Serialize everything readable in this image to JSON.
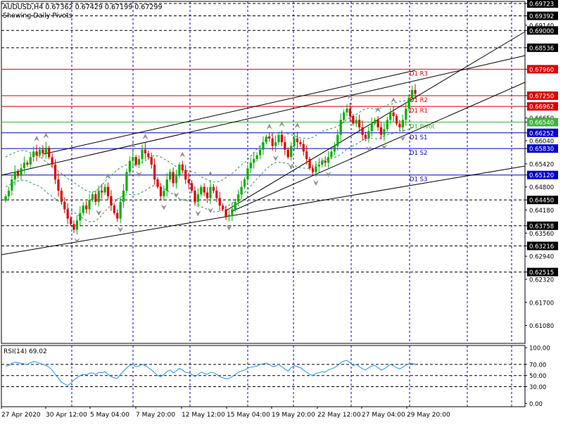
{
  "header": {
    "symbol_line": "AUDUSD,H4  0.67362 0.67429 0.67199 0.67299",
    "subtitle": "Showing Daily Pivots"
  },
  "chart_data": [
    {
      "type": "candlestick",
      "symbol": "AUDUSD",
      "timeframe": "H4",
      "ohlc_display": {
        "open": 0.67362,
        "high": 0.67429,
        "low": 0.67199,
        "close": 0.67299
      },
      "ylim": [
        0.606,
        0.6978
      ],
      "price_ticks": [
        "0.69723",
        "0.69392",
        "0.69140",
        "0.69000",
        "0.68536",
        "0.67960",
        "0.67250",
        "0.66962",
        "0.66650",
        "0.66540",
        "0.66252",
        "0.66040",
        "0.65830",
        "0.65420",
        "0.65120",
        "0.64800",
        "0.64450",
        "0.64180",
        "0.63758",
        "0.63560",
        "0.63216",
        "0.62940",
        "0.62515",
        "0.62320",
        "0.61700",
        "0.61080"
      ],
      "highlighted_ticks": [
        "0.69723",
        "0.69392",
        "0.69000",
        "0.68536",
        "0.67960",
        "0.67250",
        "0.66962",
        "0.66540",
        "0.66252",
        "0.65830",
        "0.65120",
        "0.64450",
        "0.63758",
        "0.63216",
        "0.62515"
      ],
      "x_labels": [
        "27 Apr 2020",
        "30 Apr 12:00",
        "5 May 04:00",
        "7 May 20:00",
        "12 May 12:00",
        "15 May 04:00",
        "19 May 20:00",
        "22 May 12:00",
        "27 May 04:00",
        "29 May 20:00"
      ],
      "pivots": [
        {
          "label": "D1 R3",
          "value": 0.6796,
          "color": "#dd0000"
        },
        {
          "label": "D1 R2",
          "value": 0.6725,
          "color": "#dd0000"
        },
        {
          "label": "D1 R1",
          "value": 0.66962,
          "color": "#dd0000"
        },
        {
          "label": "D1 Pivot",
          "value": 0.6654,
          "color": "#3cb43c"
        },
        {
          "label": "D1 S1",
          "value": 0.66252,
          "color": "#0000cc"
        },
        {
          "label": "D1 S2",
          "value": 0.6583,
          "color": "#0000cc"
        },
        {
          "label": "D1 S3",
          "value": 0.6512,
          "color": "#0000cc"
        }
      ],
      "horizontal_levels": [
        0.69723,
        0.69392,
        0.69,
        0.68536,
        0.6445,
        0.63758,
        0.63216,
        0.62515
      ],
      "bull_color": "#00b000",
      "bear_color": "#dd0000",
      "closes": [
        0.6455,
        0.647,
        0.65,
        0.652,
        0.651,
        0.653,
        0.6545,
        0.654,
        0.656,
        0.6575,
        0.6565,
        0.658,
        0.657,
        0.6585,
        0.656,
        0.654,
        0.65,
        0.647,
        0.644,
        0.642,
        0.6395,
        0.638,
        0.6365,
        0.639,
        0.641,
        0.643,
        0.642,
        0.6445,
        0.646,
        0.644,
        0.647,
        0.6465,
        0.648,
        0.6455,
        0.643,
        0.641,
        0.6395,
        0.644,
        0.647,
        0.652,
        0.655,
        0.656,
        0.654,
        0.6555,
        0.658,
        0.657,
        0.656,
        0.654,
        0.65,
        0.648,
        0.6455,
        0.647,
        0.65,
        0.652,
        0.649,
        0.651,
        0.654,
        0.6525,
        0.65,
        0.649,
        0.647,
        0.644,
        0.646,
        0.648,
        0.6465,
        0.645,
        0.648,
        0.647,
        0.645,
        0.643,
        0.642,
        0.64,
        0.6405,
        0.642,
        0.644,
        0.646,
        0.648,
        0.65,
        0.653,
        0.6545,
        0.6555,
        0.6565,
        0.658,
        0.66,
        0.6615,
        0.661,
        0.659,
        0.66,
        0.662,
        0.66,
        0.658,
        0.656,
        0.659,
        0.661,
        0.66,
        0.6595,
        0.6575,
        0.6555,
        0.653,
        0.652,
        0.6535,
        0.654,
        0.655,
        0.6545,
        0.656,
        0.6575,
        0.659,
        0.662,
        0.666,
        0.668,
        0.669,
        0.667,
        0.665,
        0.666,
        0.664,
        0.662,
        0.661,
        0.663,
        0.665,
        0.666,
        0.664,
        0.662,
        0.6635,
        0.666,
        0.668,
        0.667,
        0.665,
        0.664,
        0.666,
        0.669,
        0.672,
        0.674,
        0.673
      ]
    },
    {
      "type": "line",
      "name": "RSI(14) 69.02",
      "ylim": [
        -6,
        104
      ],
      "levels": [
        "100.00",
        "70.00",
        "50.00",
        "30.00",
        "0.00"
      ],
      "values": [
        67,
        68,
        72,
        74,
        73,
        72,
        71,
        70,
        73,
        75,
        74,
        72,
        70,
        68,
        65,
        60,
        52,
        45,
        38,
        35,
        32,
        36,
        42,
        46,
        50,
        52,
        51,
        54,
        55,
        52,
        56,
        55,
        57,
        52,
        48,
        46,
        45,
        52,
        58,
        64,
        68,
        70,
        66,
        67,
        70,
        68,
        64,
        60,
        55,
        50,
        48,
        52,
        57,
        60,
        55,
        58,
        63,
        60,
        56,
        55,
        52,
        48,
        52,
        56,
        54,
        52,
        56,
        55,
        52,
        48,
        46,
        44,
        45,
        48,
        52,
        56,
        58,
        60,
        63,
        65,
        66,
        67,
        70,
        71,
        72,
        70,
        66,
        67,
        70,
        66,
        62,
        58,
        64,
        68,
        66,
        64,
        60,
        56,
        52,
        50,
        54,
        55,
        57,
        56,
        60,
        62,
        64,
        68,
        73,
        76,
        77,
        73,
        68,
        70,
        66,
        62,
        60,
        64,
        67,
        68,
        64,
        60,
        62,
        66,
        70,
        68,
        64,
        62,
        65,
        69,
        71,
        72,
        70
      ]
    }
  ]
}
